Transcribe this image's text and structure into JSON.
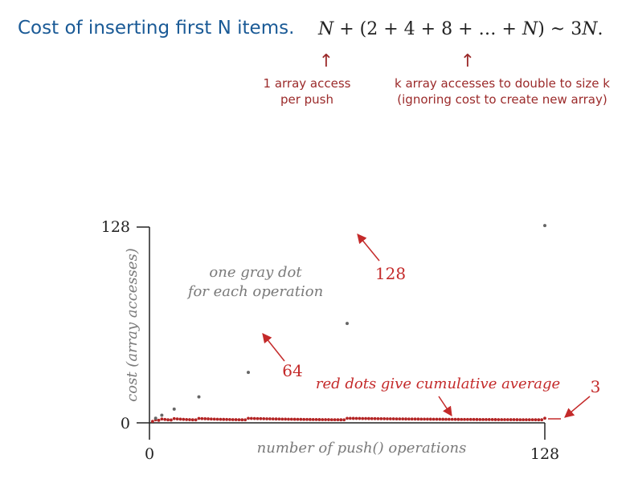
{
  "header": {
    "title": "Cost of inserting first N items.",
    "formula": {
      "t1": "N",
      "t2": " + (2 + 4 + 8 + … + ",
      "t3": "N",
      "t4": ")  ~  3",
      "t5": "N",
      "t6": "."
    },
    "note_left": [
      "1 array access",
      "per push"
    ],
    "note_right": [
      "k array accesses to double to size k",
      "(ignoring cost to create new array)"
    ]
  },
  "plot": {
    "x_label": "number of push() operations",
    "y_label": "cost (array accesses)",
    "x_ticks": [
      "0",
      "128"
    ],
    "y_ticks": [
      "0",
      "128"
    ],
    "annotations": {
      "gray_line1": "one gray dot",
      "gray_line2": "for each operation",
      "label_128": "128",
      "label_64": "64",
      "red_text": "red dots give cumulative average",
      "label_3": "3"
    },
    "colors": {
      "gray_dot": "#666666",
      "red_dot": "#b32424",
      "red_text": "#c42a2a",
      "gray_text": "#7a7a7a"
    }
  }
}
